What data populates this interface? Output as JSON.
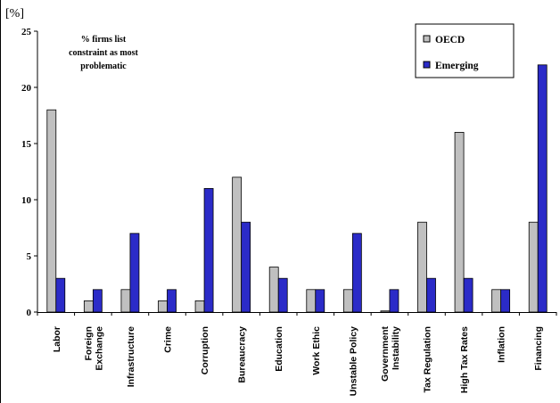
{
  "chart_data": {
    "type": "bar",
    "ylabel": "[%]",
    "annotation": [
      "% firms list",
      "constraint as most",
      "problematic"
    ],
    "ylim": [
      0,
      25
    ],
    "yticks": [
      0,
      5,
      10,
      15,
      20,
      25
    ],
    "categories": [
      [
        "Labor"
      ],
      [
        "Foreign",
        "Exchange"
      ],
      [
        "Infrastructure"
      ],
      [
        "Crime"
      ],
      [
        "Corruption"
      ],
      [
        "Bureaucracy"
      ],
      [
        "Education"
      ],
      [
        "Work Ethic"
      ],
      [
        "Unstable Policy"
      ],
      [
        "Government",
        "Instability"
      ],
      [
        "Tax Regulation"
      ],
      [
        "High Tax Rates"
      ],
      [
        "Inflation"
      ],
      [
        "Financing"
      ]
    ],
    "series": [
      {
        "name": "OECD",
        "color": "#c0c0c0",
        "values": [
          18,
          1,
          2,
          1,
          1,
          12,
          4,
          2,
          2,
          0.1,
          8,
          16,
          2,
          8
        ]
      },
      {
        "name": "Emerging",
        "color": "#2b2bc8",
        "values": [
          3,
          2,
          7,
          2,
          11,
          8,
          3,
          2,
          7,
          2,
          3,
          3,
          2,
          22
        ]
      }
    ],
    "legend_position": "top-right",
    "grid": false
  }
}
